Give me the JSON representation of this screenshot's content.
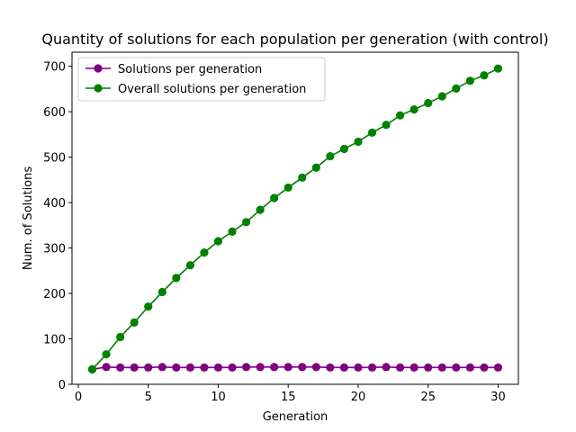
{
  "chart_data": {
    "type": "line",
    "title": "Quantity of solutions for each population per generation (with control)",
    "xlabel": "Generation",
    "ylabel": "Num. of Solutions",
    "xlim": [
      -0.45,
      31.45
    ],
    "ylim": [
      0,
      731
    ],
    "xticks": [
      0,
      5,
      10,
      15,
      20,
      25,
      30
    ],
    "yticks": [
      0,
      100,
      200,
      300,
      400,
      500,
      600,
      700
    ],
    "legend": "top-left",
    "grid": false,
    "x": [
      1,
      2,
      3,
      4,
      5,
      6,
      7,
      8,
      9,
      10,
      11,
      12,
      13,
      14,
      15,
      16,
      17,
      18,
      19,
      20,
      21,
      22,
      23,
      24,
      25,
      26,
      27,
      28,
      29,
      30
    ],
    "series": [
      {
        "name": "Solutions per generation",
        "color": "#800080",
        "values": [
          33,
          38,
          37,
          37,
          37,
          38,
          37,
          37,
          37,
          37,
          37,
          38,
          38,
          38,
          38,
          38,
          38,
          37,
          37,
          37,
          37,
          38,
          37,
          37,
          37,
          37,
          37,
          37,
          37,
          37
        ]
      },
      {
        "name": "Overall solutions per generation",
        "color": "#008000",
        "values": [
          33,
          66,
          104,
          136,
          171,
          203,
          234,
          262,
          290,
          315,
          336,
          357,
          384,
          410,
          433,
          455,
          477,
          502,
          518,
          534,
          554,
          571,
          592,
          605,
          619,
          634,
          651,
          668,
          680,
          695
        ]
      }
    ]
  }
}
